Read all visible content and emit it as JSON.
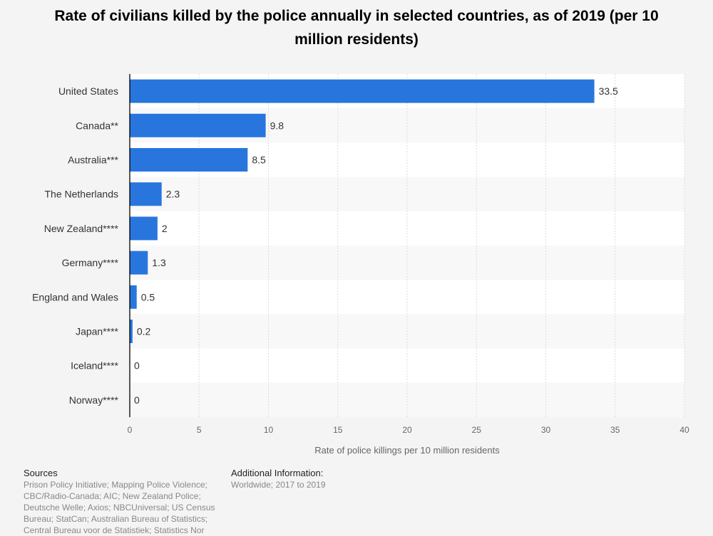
{
  "chart_data": {
    "type": "bar",
    "orientation": "horizontal",
    "title": "Rate of civilians killed by the police annually in selected countries, as of 2019 (per 10 million residents)",
    "xlabel": "Rate of police killings per 10 million residents",
    "categories": [
      "United States",
      "Canada**",
      "Australia***",
      "The Netherlands",
      "New Zealand****",
      "Germany****",
      "England and Wales",
      "Japan****",
      "Iceland****",
      "Norway****"
    ],
    "values": [
      33.5,
      9.8,
      8.5,
      2.3,
      2,
      1.3,
      0.5,
      0.2,
      0,
      0
    ],
    "value_labels": [
      "33.5",
      "9.8",
      "8.5",
      "2.3",
      "2",
      "1.3",
      "0.5",
      "0.2",
      "0",
      "0"
    ],
    "xlim": [
      0,
      40
    ],
    "xticks": [
      0,
      5,
      10,
      15,
      20,
      25,
      30,
      35,
      40
    ],
    "grid": true,
    "bar_color": "#2876dd"
  },
  "footer": {
    "sources_heading": "Sources",
    "sources_text": "Prison Policy Initiative; Mapping Police Violence; CBC/Radio-Canada; AIC; New Zealand Police; Deutsche Welle; Axios; NBCUniversal; US Census Bureau; StatCan; Australian Bureau of Statistics; Central Bureau voor de Statistiek; Statistics Nor",
    "additional_heading": "Additional Information:",
    "additional_text": "Worldwide; 2017 to 2019"
  }
}
